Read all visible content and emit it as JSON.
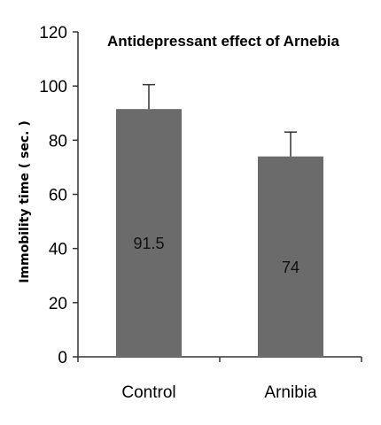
{
  "chart_data": {
    "type": "bar",
    "title": "Antidepressant effect of Arnebia",
    "ylabel": "Immobility time ( sec. )",
    "xlabel": "",
    "categories": [
      "Control",
      "Arnibia"
    ],
    "values": [
      91.5,
      74
    ],
    "value_labels": [
      "91.5",
      "74"
    ],
    "errors": [
      9,
      9
    ],
    "ylim": [
      0,
      120
    ],
    "yticks": [
      0,
      20,
      40,
      60,
      80,
      100,
      120
    ],
    "grid": false,
    "bar_color": "#6b6b6b",
    "axis_color": "#333333"
  }
}
